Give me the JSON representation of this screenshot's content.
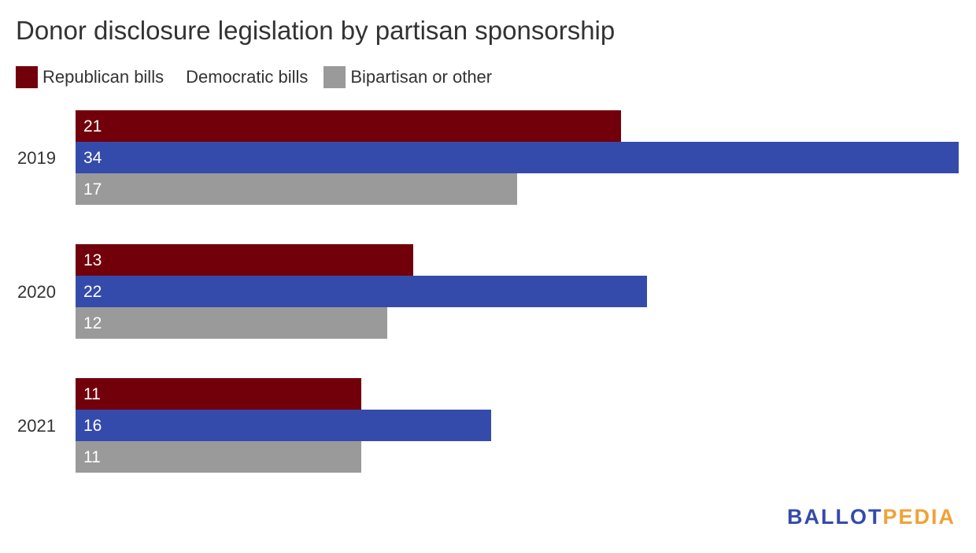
{
  "chart_data": {
    "type": "bar",
    "orientation": "horizontal",
    "title": "Donor disclosure legislation by partisan sponsorship",
    "categories": [
      "2019",
      "2020",
      "2021"
    ],
    "series": [
      {
        "name": "Republican bills",
        "values": [
          21,
          13,
          11
        ],
        "color": "#72000a"
      },
      {
        "name": "Democratic bills",
        "values": [
          34,
          22,
          16
        ],
        "color": "#344bab"
      },
      {
        "name": "Bipartisan or other",
        "values": [
          17,
          12,
          11
        ],
        "color": "#9a9a9a"
      }
    ],
    "xlim": [
      0,
      34
    ],
    "grid": false,
    "legend_position": "top-left",
    "data_labels": "inside-start"
  },
  "brand": {
    "logo_part1": "BALLOT",
    "logo_part2": "PEDIA",
    "color1": "#344bab",
    "color2": "#f0a236"
  }
}
